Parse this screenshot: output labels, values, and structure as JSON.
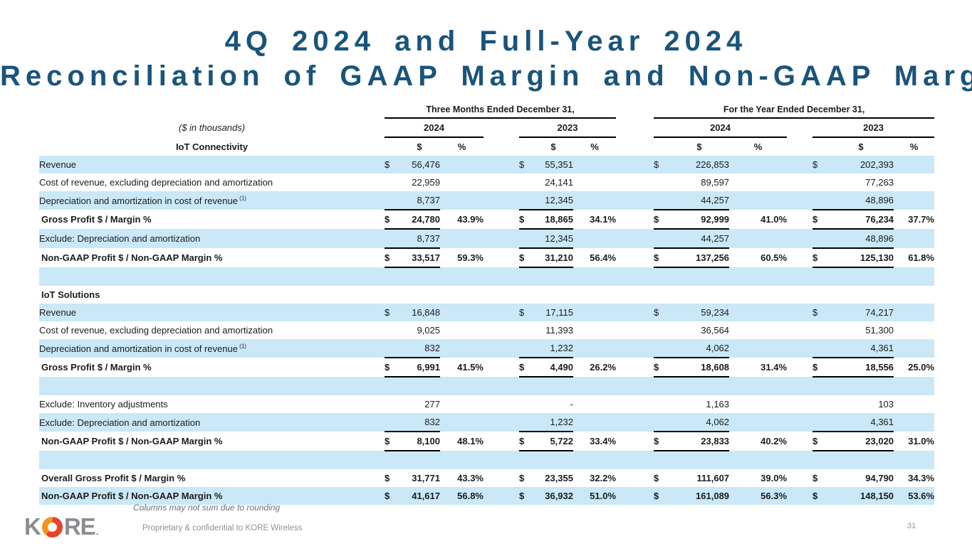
{
  "slide": {
    "title_line1": "4Q 2024 and Full-Year 2024",
    "title_line2": "Reconciliation of GAAP Margin and Non-GAAP Margin",
    "page_number": "31"
  },
  "table": {
    "units_note": "($ in thousands)",
    "first_section_label": "IoT Connectivity",
    "groups": [
      {
        "label": "Three Months Ended December 31,",
        "years": [
          "2024",
          "2023"
        ]
      },
      {
        "label": "For the Year Ended December 31,",
        "years": [
          "2024",
          "2023"
        ]
      }
    ],
    "unit_headers": {
      "dollar": "$",
      "percent": "%"
    },
    "rows": [
      {
        "style": "item",
        "label": "Revenue",
        "cells": [
          {
            "d": "$",
            "v": "56,476",
            "p": ""
          },
          {
            "d": "$",
            "v": "55,351",
            "p": ""
          },
          {
            "d": "$",
            "v": "226,853",
            "p": ""
          },
          {
            "d": "$",
            "v": "202,393",
            "p": ""
          }
        ]
      },
      {
        "style": "item",
        "label": "Cost of revenue, excluding depreciation and amortization",
        "cells": [
          {
            "d": "",
            "v": "22,959",
            "p": ""
          },
          {
            "d": "",
            "v": "24,141",
            "p": ""
          },
          {
            "d": "",
            "v": "89,597",
            "p": ""
          },
          {
            "d": "",
            "v": "77,263",
            "p": ""
          }
        ]
      },
      {
        "style": "item",
        "label": "Depreciation and amortization in cost of revenue",
        "sup": "(1)",
        "rule_below": true,
        "cells": [
          {
            "d": "",
            "v": "8,737",
            "p": ""
          },
          {
            "d": "",
            "v": "12,345",
            "p": ""
          },
          {
            "d": "",
            "v": "44,257",
            "p": ""
          },
          {
            "d": "",
            "v": "48,896",
            "p": ""
          }
        ]
      },
      {
        "style": "total",
        "label": "Gross Profit $ / Margin %",
        "rule_below": true,
        "cells": [
          {
            "d": "$",
            "v": "24,780",
            "p": "43.9%"
          },
          {
            "d": "$",
            "v": "18,865",
            "p": "34.1%"
          },
          {
            "d": "$",
            "v": "92,999",
            "p": "41.0%"
          },
          {
            "d": "$",
            "v": "76,234",
            "p": "37.7%"
          }
        ]
      },
      {
        "style": "item",
        "label": "Exclude: Depreciation and amortization",
        "rule_below": true,
        "cells": [
          {
            "d": "",
            "v": "8,737",
            "p": ""
          },
          {
            "d": "",
            "v": "12,345",
            "p": ""
          },
          {
            "d": "",
            "v": "44,257",
            "p": ""
          },
          {
            "d": "",
            "v": "48,896",
            "p": ""
          }
        ]
      },
      {
        "style": "total",
        "label": "Non-GAAP Profit $ / Non-GAAP Margin %",
        "rule_below": true,
        "cells": [
          {
            "d": "$",
            "v": "33,517",
            "p": "59.3%"
          },
          {
            "d": "$",
            "v": "31,210",
            "p": "56.4%"
          },
          {
            "d": "$",
            "v": "137,256",
            "p": "60.5%"
          },
          {
            "d": "$",
            "v": "125,130",
            "p": "61.8%"
          }
        ]
      },
      {
        "style": "spacer",
        "label": ""
      },
      {
        "style": "section",
        "label": "IoT Solutions"
      },
      {
        "style": "item",
        "label": "Revenue",
        "cells": [
          {
            "d": "$",
            "v": "16,848",
            "p": ""
          },
          {
            "d": "$",
            "v": "17,115",
            "p": ""
          },
          {
            "d": "$",
            "v": "59,234",
            "p": ""
          },
          {
            "d": "$",
            "v": "74,217",
            "p": ""
          }
        ]
      },
      {
        "style": "item",
        "label": "Cost of revenue, excluding depreciation and amortization",
        "cells": [
          {
            "d": "",
            "v": "9,025",
            "p": ""
          },
          {
            "d": "",
            "v": "11,393",
            "p": ""
          },
          {
            "d": "",
            "v": "36,564",
            "p": ""
          },
          {
            "d": "",
            "v": "51,300",
            "p": ""
          }
        ]
      },
      {
        "style": "item",
        "label": "Depreciation and amortization in cost of revenue",
        "sup": "(1)",
        "rule_below": true,
        "cells": [
          {
            "d": "",
            "v": "832",
            "p": ""
          },
          {
            "d": "",
            "v": "1,232",
            "p": ""
          },
          {
            "d": "",
            "v": "4,062",
            "p": ""
          },
          {
            "d": "",
            "v": "4,361",
            "p": ""
          }
        ]
      },
      {
        "style": "total",
        "label": "Gross Profit $ / Margin %",
        "rule_below": true,
        "cells": [
          {
            "d": "$",
            "v": "6,991",
            "p": "41.5%"
          },
          {
            "d": "$",
            "v": "4,490",
            "p": "26.2%"
          },
          {
            "d": "$",
            "v": "18,608",
            "p": "31.4%"
          },
          {
            "d": "$",
            "v": "18,556",
            "p": "25.0%"
          }
        ]
      },
      {
        "style": "spacer",
        "label": ""
      },
      {
        "style": "item",
        "label": "Exclude: Inventory adjustments",
        "cells": [
          {
            "d": "",
            "v": "277",
            "p": ""
          },
          {
            "d": "",
            "v": "-",
            "p": ""
          },
          {
            "d": "",
            "v": "1,163",
            "p": ""
          },
          {
            "d": "",
            "v": "103",
            "p": ""
          }
        ]
      },
      {
        "style": "item",
        "label": "Exclude: Depreciation and amortization",
        "rule_below": true,
        "cells": [
          {
            "d": "",
            "v": "832",
            "p": ""
          },
          {
            "d": "",
            "v": "1,232",
            "p": ""
          },
          {
            "d": "",
            "v": "4,062",
            "p": ""
          },
          {
            "d": "",
            "v": "4,361",
            "p": ""
          }
        ]
      },
      {
        "style": "total",
        "label": "Non-GAAP Profit $ / Non-GAAP Margin %",
        "rule_below": true,
        "cells": [
          {
            "d": "$",
            "v": "8,100",
            "p": "48.1%"
          },
          {
            "d": "$",
            "v": "5,722",
            "p": "33.4%"
          },
          {
            "d": "$",
            "v": "23,833",
            "p": "40.2%"
          },
          {
            "d": "$",
            "v": "23,020",
            "p": "31.0%"
          }
        ]
      },
      {
        "style": "spacer",
        "label": ""
      },
      {
        "style": "total",
        "label": "Overall Gross Profit $ / Margin %",
        "cells": [
          {
            "d": "$",
            "v": "31,771",
            "p": "43.3%"
          },
          {
            "d": "$",
            "v": "23,355",
            "p": "32.2%"
          },
          {
            "d": "$",
            "v": "111,607",
            "p": "39.0%"
          },
          {
            "d": "$",
            "v": "94,790",
            "p": "34.3%"
          }
        ]
      },
      {
        "style": "total",
        "label": "Non-GAAP Profit $ / Non-GAAP Margin %",
        "cells": [
          {
            "d": "$",
            "v": "41,617",
            "p": "56.8%"
          },
          {
            "d": "$",
            "v": "36,932",
            "p": "51.0%"
          },
          {
            "d": "$",
            "v": "161,089",
            "p": "56.3%"
          },
          {
            "d": "$",
            "v": "148,150",
            "p": "53.6%"
          }
        ]
      }
    ]
  },
  "footer": {
    "rounding_note": "Columns may not sum due to rounding",
    "confidential_note": "Proprietary & confidential to KORE Wireless",
    "logo_k": "K",
    "logo_re": "RE",
    "logo_dot": "."
  },
  "colors": {
    "title": "#19547B",
    "stripe": "#CAE8F8",
    "logo_gray": "#8A8D90",
    "logo_orange": "#F6921E",
    "logo_red": "#E8432E"
  }
}
